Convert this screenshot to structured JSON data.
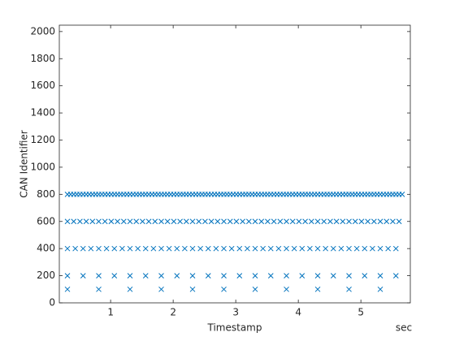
{
  "chart_data": {
    "type": "scatter",
    "xlabel": "Timestamp",
    "ylabel": "CAN Identifier",
    "xunit": "sec",
    "xlim": [
      0.18,
      5.79
    ],
    "ylim": [
      0,
      2047
    ],
    "xticks": [
      1,
      2,
      3,
      4,
      5
    ],
    "yticks": [
      0,
      200,
      400,
      600,
      800,
      1000,
      1200,
      1400,
      1600,
      1800,
      2000
    ],
    "marker": "x",
    "series": [
      {
        "color": "#0072BD",
        "x": [
          0.31,
          0.81,
          1.31,
          1.81,
          2.31,
          2.81,
          3.31,
          3.81,
          4.31,
          4.81,
          5.31
        ],
        "values": [
          100,
          100,
          100,
          100,
          100,
          100,
          100,
          100,
          100,
          100,
          100
        ]
      },
      {
        "color": "#0072BD",
        "x": [
          0.31,
          0.56,
          0.81,
          1.06,
          1.31,
          1.56,
          1.81,
          2.06,
          2.31,
          2.56,
          2.81,
          3.06,
          3.31,
          3.56,
          3.81,
          4.06,
          4.31,
          4.56,
          4.81,
          5.06,
          5.31,
          5.56
        ],
        "values": [
          200,
          200,
          200,
          200,
          200,
          200,
          200,
          200,
          200,
          200,
          200,
          200,
          200,
          200,
          200,
          200,
          200,
          200,
          200,
          200,
          200,
          200
        ]
      },
      {
        "color": "#0072BD",
        "x": [
          0.31,
          0.435,
          0.56,
          0.685,
          0.81,
          0.935,
          1.06,
          1.185,
          1.31,
          1.435,
          1.56,
          1.685,
          1.81,
          1.935,
          2.06,
          2.185,
          2.31,
          2.435,
          2.56,
          2.685,
          2.81,
          2.935,
          3.06,
          3.185,
          3.31,
          3.435,
          3.56,
          3.685,
          3.81,
          3.935,
          4.06,
          4.185,
          4.31,
          4.435,
          4.56,
          4.685,
          4.81,
          4.935,
          5.06,
          5.185,
          5.31,
          5.435,
          5.56
        ],
        "values": [
          400,
          400,
          400,
          400,
          400,
          400,
          400,
          400,
          400,
          400,
          400,
          400,
          400,
          400,
          400,
          400,
          400,
          400,
          400,
          400,
          400,
          400,
          400,
          400,
          400,
          400,
          400,
          400,
          400,
          400,
          400,
          400,
          400,
          400,
          400,
          400,
          400,
          400,
          400,
          400,
          400,
          400,
          400
        ]
      },
      {
        "color": "#0072BD",
        "x": [
          0.31,
          0.41,
          0.51,
          0.61,
          0.71,
          0.81,
          0.91,
          1.01,
          1.11,
          1.21,
          1.31,
          1.41,
          1.51,
          1.61,
          1.71,
          1.81,
          1.91,
          2.01,
          2.11,
          2.21,
          2.31,
          2.41,
          2.51,
          2.61,
          2.71,
          2.81,
          2.91,
          3.01,
          3.11,
          3.21,
          3.31,
          3.41,
          3.51,
          3.61,
          3.71,
          3.81,
          3.91,
          4.01,
          4.11,
          4.21,
          4.31,
          4.41,
          4.51,
          4.61,
          4.71,
          4.81,
          4.91,
          5.01,
          5.11,
          5.21,
          5.31,
          5.41,
          5.51,
          5.61
        ],
        "values": [
          600,
          600,
          600,
          600,
          600,
          600,
          600,
          600,
          600,
          600,
          600,
          600,
          600,
          600,
          600,
          600,
          600,
          600,
          600,
          600,
          600,
          600,
          600,
          600,
          600,
          600,
          600,
          600,
          600,
          600,
          600,
          600,
          600,
          600,
          600,
          600,
          600,
          600,
          600,
          600,
          600,
          600,
          600,
          600,
          600,
          600,
          600,
          600,
          600,
          600,
          600,
          600,
          600,
          600
        ]
      },
      {
        "color": "#0072BD",
        "x": [
          0.31,
          0.36,
          0.41,
          0.46,
          0.51,
          0.56,
          0.61,
          0.66,
          0.71,
          0.76,
          0.81,
          0.86,
          0.91,
          0.96,
          1.01,
          1.06,
          1.11,
          1.16,
          1.21,
          1.26,
          1.31,
          1.36,
          1.41,
          1.46,
          1.51,
          1.56,
          1.61,
          1.66,
          1.71,
          1.76,
          1.81,
          1.86,
          1.91,
          1.96,
          2.01,
          2.06,
          2.11,
          2.16,
          2.21,
          2.26,
          2.31,
          2.36,
          2.41,
          2.46,
          2.51,
          2.56,
          2.61,
          2.66,
          2.71,
          2.76,
          2.81,
          2.86,
          2.91,
          2.96,
          3.01,
          3.06,
          3.11,
          3.16,
          3.21,
          3.26,
          3.31,
          3.36,
          3.41,
          3.46,
          3.51,
          3.56,
          3.61,
          3.66,
          3.71,
          3.76,
          3.81,
          3.86,
          3.91,
          3.96,
          4.01,
          4.06,
          4.11,
          4.16,
          4.21,
          4.26,
          4.31,
          4.36,
          4.41,
          4.46,
          4.51,
          4.56,
          4.61,
          4.66,
          4.71,
          4.76,
          4.81,
          4.86,
          4.91,
          4.96,
          5.01,
          5.06,
          5.11,
          5.16,
          5.21,
          5.26,
          5.31,
          5.36,
          5.41,
          5.46,
          5.51,
          5.56,
          5.61,
          5.66
        ],
        "values": [
          800,
          800,
          800,
          800,
          800,
          800,
          800,
          800,
          800,
          800,
          800,
          800,
          800,
          800,
          800,
          800,
          800,
          800,
          800,
          800,
          800,
          800,
          800,
          800,
          800,
          800,
          800,
          800,
          800,
          800,
          800,
          800,
          800,
          800,
          800,
          800,
          800,
          800,
          800,
          800,
          800,
          800,
          800,
          800,
          800,
          800,
          800,
          800,
          800,
          800,
          800,
          800,
          800,
          800,
          800,
          800,
          800,
          800,
          800,
          800,
          800,
          800,
          800,
          800,
          800,
          800,
          800,
          800,
          800,
          800,
          800,
          800,
          800,
          800,
          800,
          800,
          800,
          800,
          800,
          800,
          800,
          800,
          800,
          800,
          800,
          800,
          800,
          800,
          800,
          800,
          800,
          800,
          800,
          800,
          800,
          800,
          800,
          800,
          800,
          800,
          800,
          800,
          800,
          800,
          800,
          800,
          800,
          800
        ]
      }
    ]
  }
}
